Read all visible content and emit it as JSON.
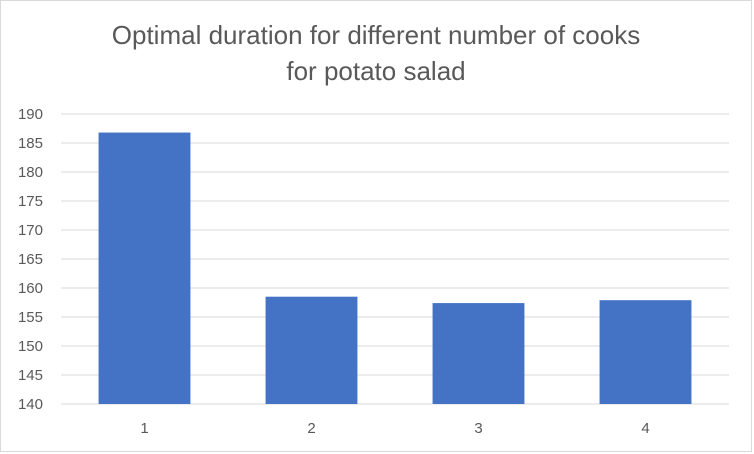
{
  "chart_data": {
    "type": "bar",
    "title_lines": [
      "Optimal duration for different number of cooks",
      "for potato salad"
    ],
    "categories": [
      "1",
      "2",
      "3",
      "4"
    ],
    "series": [
      {
        "values": [
          186.8,
          158.5,
          157.4,
          157.9
        ],
        "color": "#4472c4"
      }
    ],
    "xlabel": "",
    "ylabel": "",
    "ylim": [
      140,
      190
    ],
    "y_ticks": [
      140,
      145,
      150,
      155,
      160,
      165,
      170,
      175,
      180,
      185,
      190
    ],
    "grid": "horizontal",
    "legend": "none",
    "colors": {
      "bar": "#4472c4",
      "grid": "#d9d9d9",
      "text": "#595959",
      "border": "#d9d9d9"
    }
  }
}
